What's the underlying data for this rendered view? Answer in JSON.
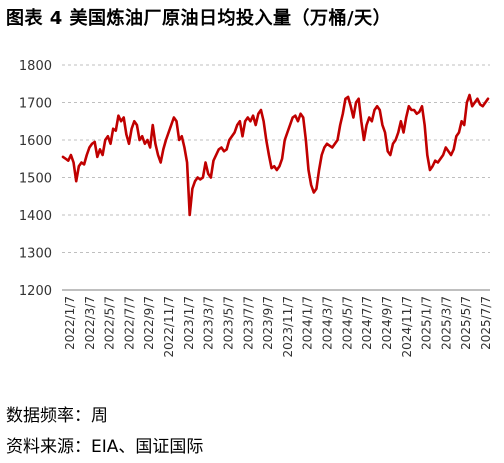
{
  "title": "图表 4 美国炼油厂原油日均投入量（万桶/天）",
  "notes": {
    "frequency": "数据频率：周",
    "source": "资料来源：EIA、国证国际"
  },
  "colors": {
    "line": "#c00000",
    "grid": "#bfbfbf",
    "axis": "#7f7f7f"
  },
  "chart_data": {
    "type": "line",
    "title": "图表 4 美国炼油厂原油日均投入量（万桶/天）",
    "xlabel": "",
    "ylabel": "",
    "ylim": [
      1200,
      1800
    ],
    "yticks": [
      1200,
      1300,
      1400,
      1500,
      1600,
      1700,
      1800
    ],
    "grid": true,
    "legend": "none",
    "xtick_labels": [
      "2022/1/7",
      "2022/3/7",
      "2022/5/7",
      "2022/7/7",
      "2022/9/7",
      "2022/11/7",
      "2023/1/7",
      "2023/3/7",
      "2023/5/7",
      "2023/7/7",
      "2023/9/7",
      "2023/11/7",
      "2024/1/7",
      "2024/3/7",
      "2024/5/7",
      "2024/7/7",
      "2024/9/7",
      "2024/11/7",
      "2025/1/7",
      "2025/3/7",
      "2025/5/7",
      "2025/7/7"
    ],
    "series": [
      {
        "name": "",
        "x_start": "2022/1/7",
        "frequency": "weekly",
        "values": [
          1555,
          1550,
          1545,
          1560,
          1540,
          1490,
          1530,
          1540,
          1535,
          1560,
          1580,
          1590,
          1595,
          1555,
          1575,
          1560,
          1600,
          1610,
          1590,
          1630,
          1625,
          1665,
          1650,
          1660,
          1615,
          1590,
          1630,
          1650,
          1640,
          1600,
          1610,
          1590,
          1600,
          1580,
          1640,
          1590,
          1560,
          1540,
          1575,
          1600,
          1620,
          1640,
          1660,
          1650,
          1600,
          1610,
          1580,
          1540,
          1400,
          1470,
          1490,
          1500,
          1495,
          1500,
          1540,
          1510,
          1500,
          1545,
          1560,
          1575,
          1580,
          1570,
          1575,
          1600,
          1610,
          1620,
          1640,
          1650,
          1610,
          1650,
          1660,
          1650,
          1665,
          1640,
          1670,
          1680,
          1650,
          1600,
          1560,
          1525,
          1530,
          1520,
          1530,
          1550,
          1600,
          1620,
          1640,
          1660,
          1665,
          1650,
          1670,
          1660,
          1600,
          1520,
          1480,
          1460,
          1470,
          1520,
          1560,
          1580,
          1590,
          1585,
          1580,
          1590,
          1600,
          1640,
          1670,
          1710,
          1715,
          1690,
          1660,
          1700,
          1710,
          1650,
          1600,
          1640,
          1660,
          1650,
          1680,
          1690,
          1680,
          1640,
          1620,
          1570,
          1560,
          1590,
          1600,
          1620,
          1650,
          1620,
          1660,
          1690,
          1680,
          1680,
          1670,
          1675,
          1690,
          1640,
          1560,
          1520,
          1530,
          1545,
          1540,
          1550,
          1560,
          1580,
          1570,
          1560,
          1575,
          1610,
          1620,
          1650,
          1640,
          1700,
          1720,
          1690,
          1700,
          1710,
          1695,
          1690,
          1700,
          1710
        ]
      }
    ]
  }
}
